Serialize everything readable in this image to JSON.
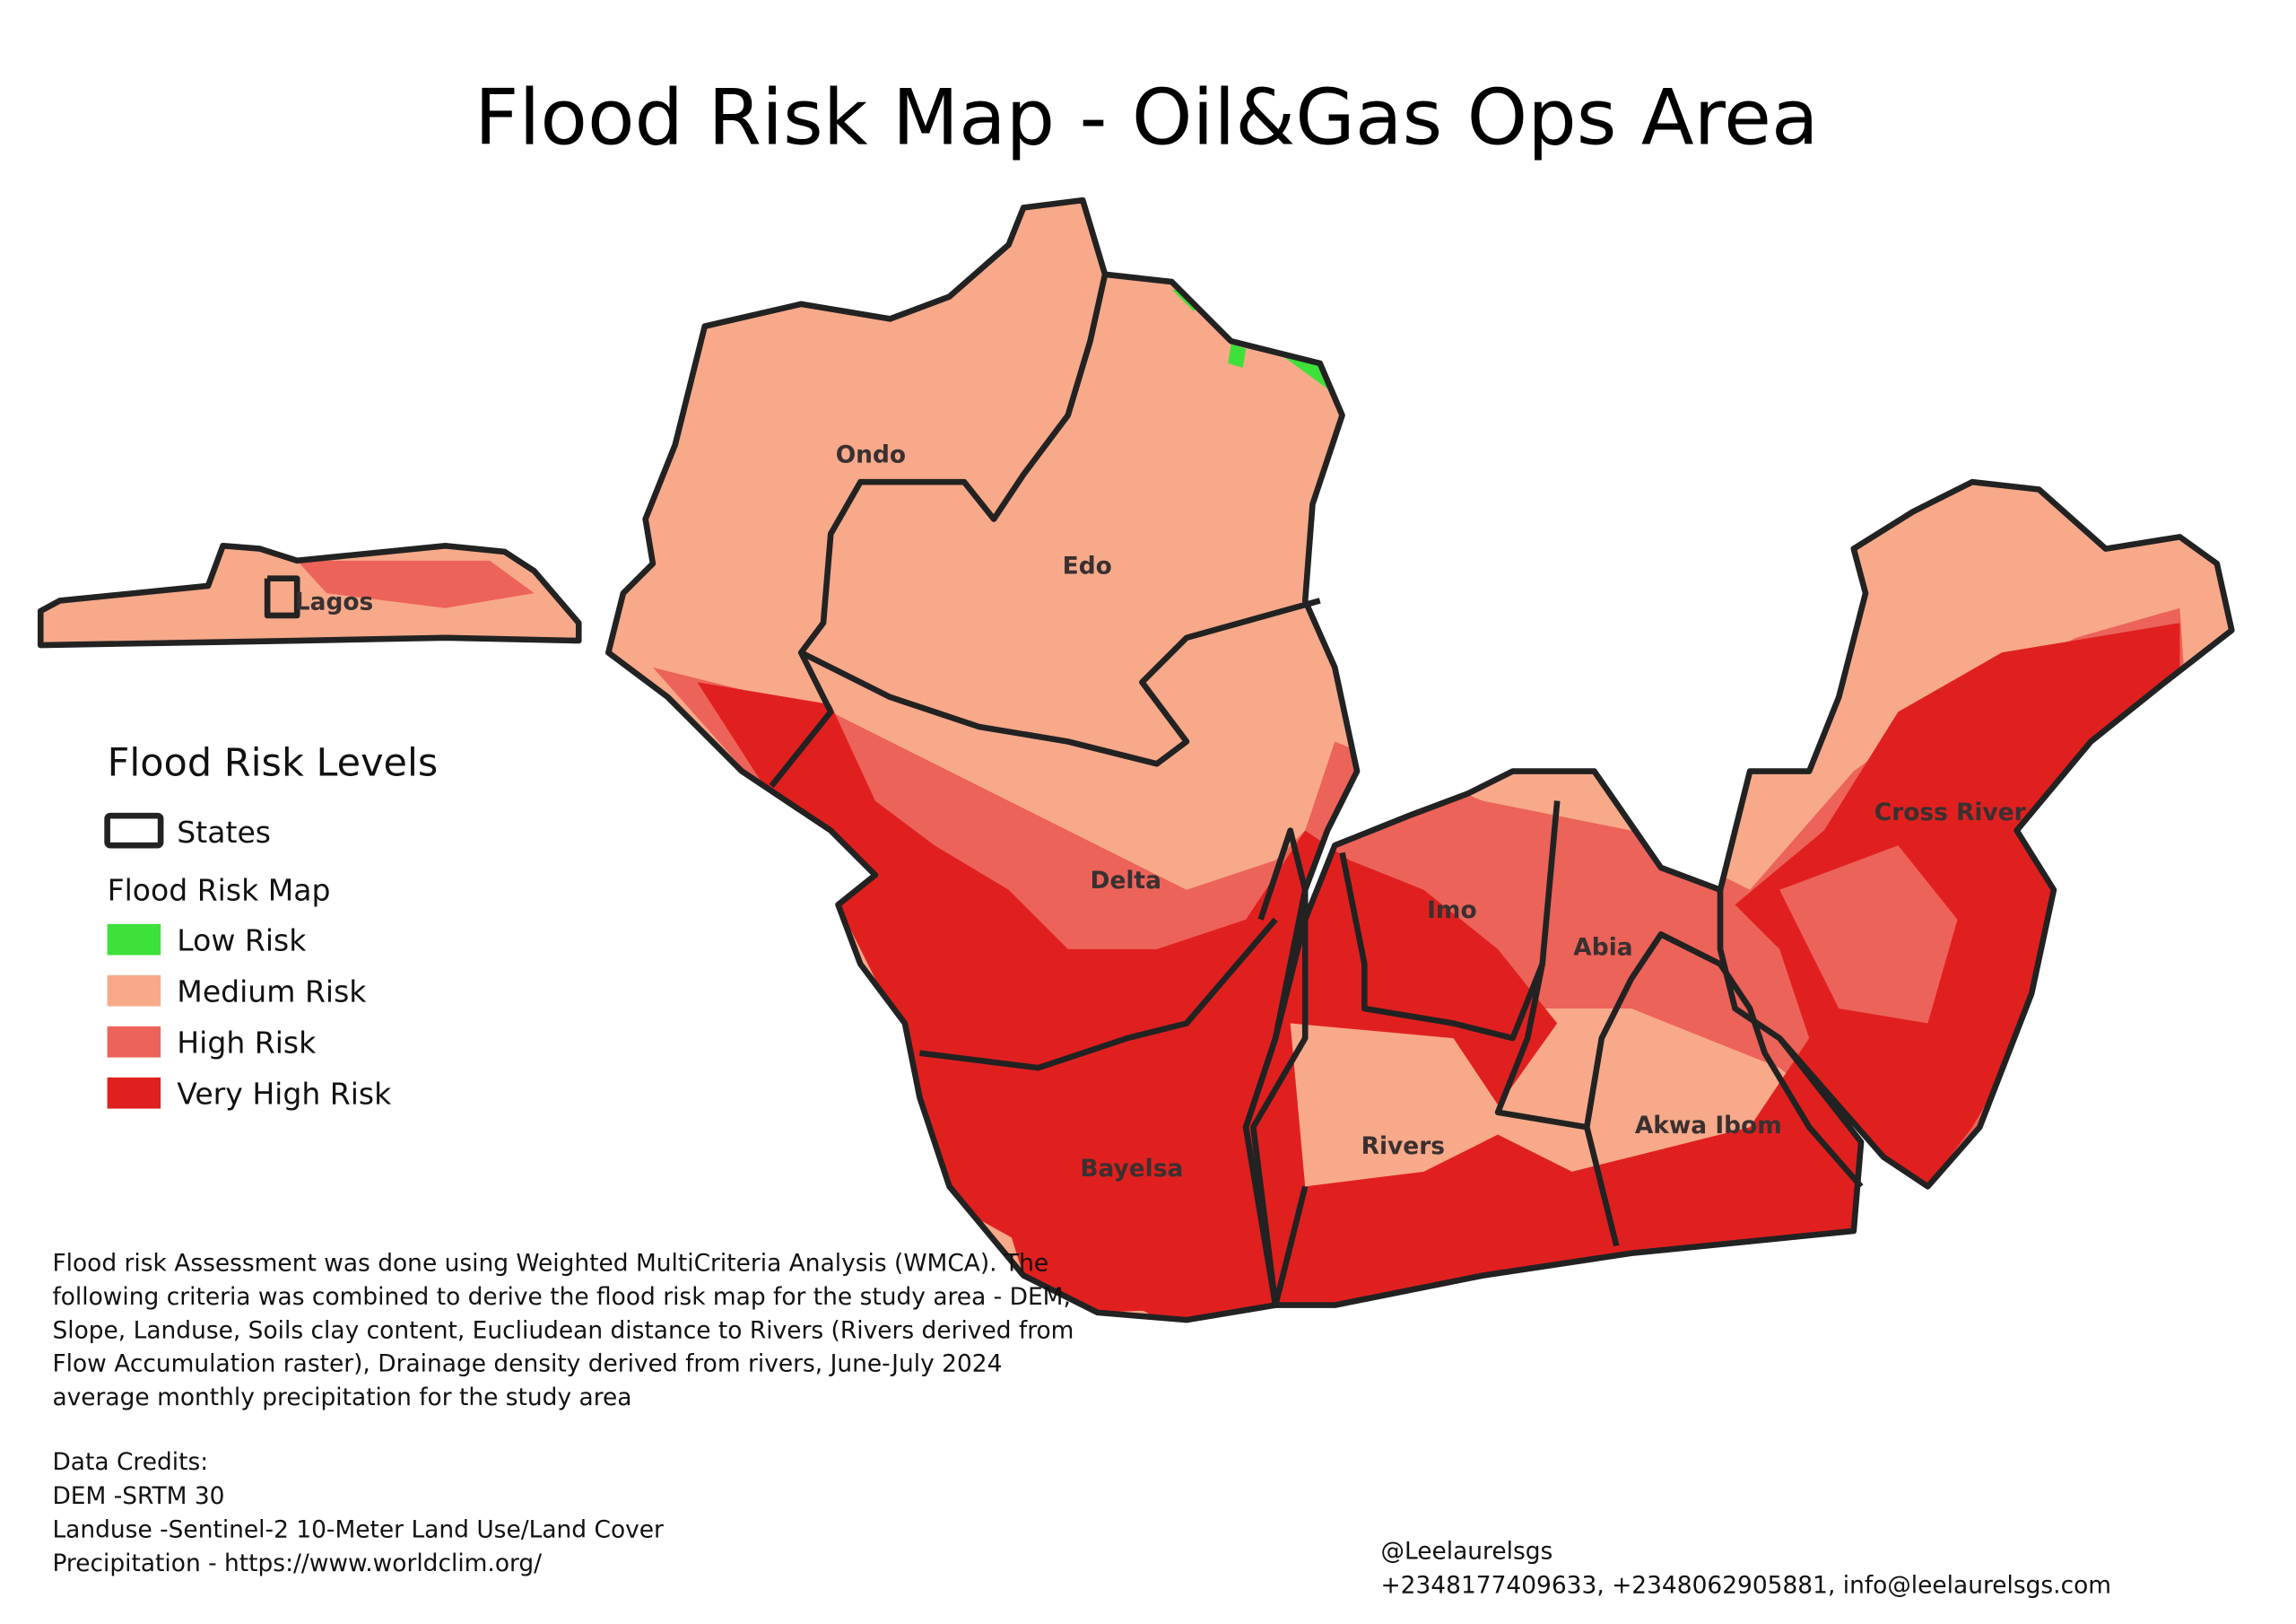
{
  "title": "Flood Risk Map - Oil&Gas Ops Area",
  "legend": {
    "title": "Flood Risk Levels",
    "states": "States",
    "subtitle": "Flood Risk Map",
    "items": [
      {
        "label": "Low Risk",
        "color": "#3ee03a"
      },
      {
        "label": "Medium Risk",
        "color": "#f7a98a"
      },
      {
        "label": "High Risk",
        "color": "#ec6359"
      },
      {
        "label": "Very High Risk",
        "color": "#e0201f"
      }
    ]
  },
  "states": [
    "Ondo",
    "Lagos",
    "Edo",
    "Delta",
    "Bayelsa",
    "Imo",
    "Abia",
    "Rivers",
    "Akwa Ibom",
    "Cross River"
  ],
  "description": [
    "Flood risk Assessment was done using Weighted MultiCriteria Analysis (WMCA). The",
    "following criteria was combined to derive the flood risk map for the study area - DEM,",
    "Slope, Landuse, Soils clay content, Eucliudean distance to  Rivers (Rivers derived from",
    "Flow Accumulation raster), Drainage density derived from rivers, June-July 2024",
    "average monthly precipitation for the study area"
  ],
  "credits": {
    "title": "Data Credits:",
    "lines": [
      "DEM -SRTM 30",
      "Landuse -Sentinel-2 10-Meter Land Use/Land Cover",
      "Precipitation - https://www.worldclim.org/"
    ]
  },
  "contact": {
    "handle": "@Leelaurelsgs",
    "details": "+2348177409633, +2348062905881, info@leelaurelsgs.com"
  }
}
